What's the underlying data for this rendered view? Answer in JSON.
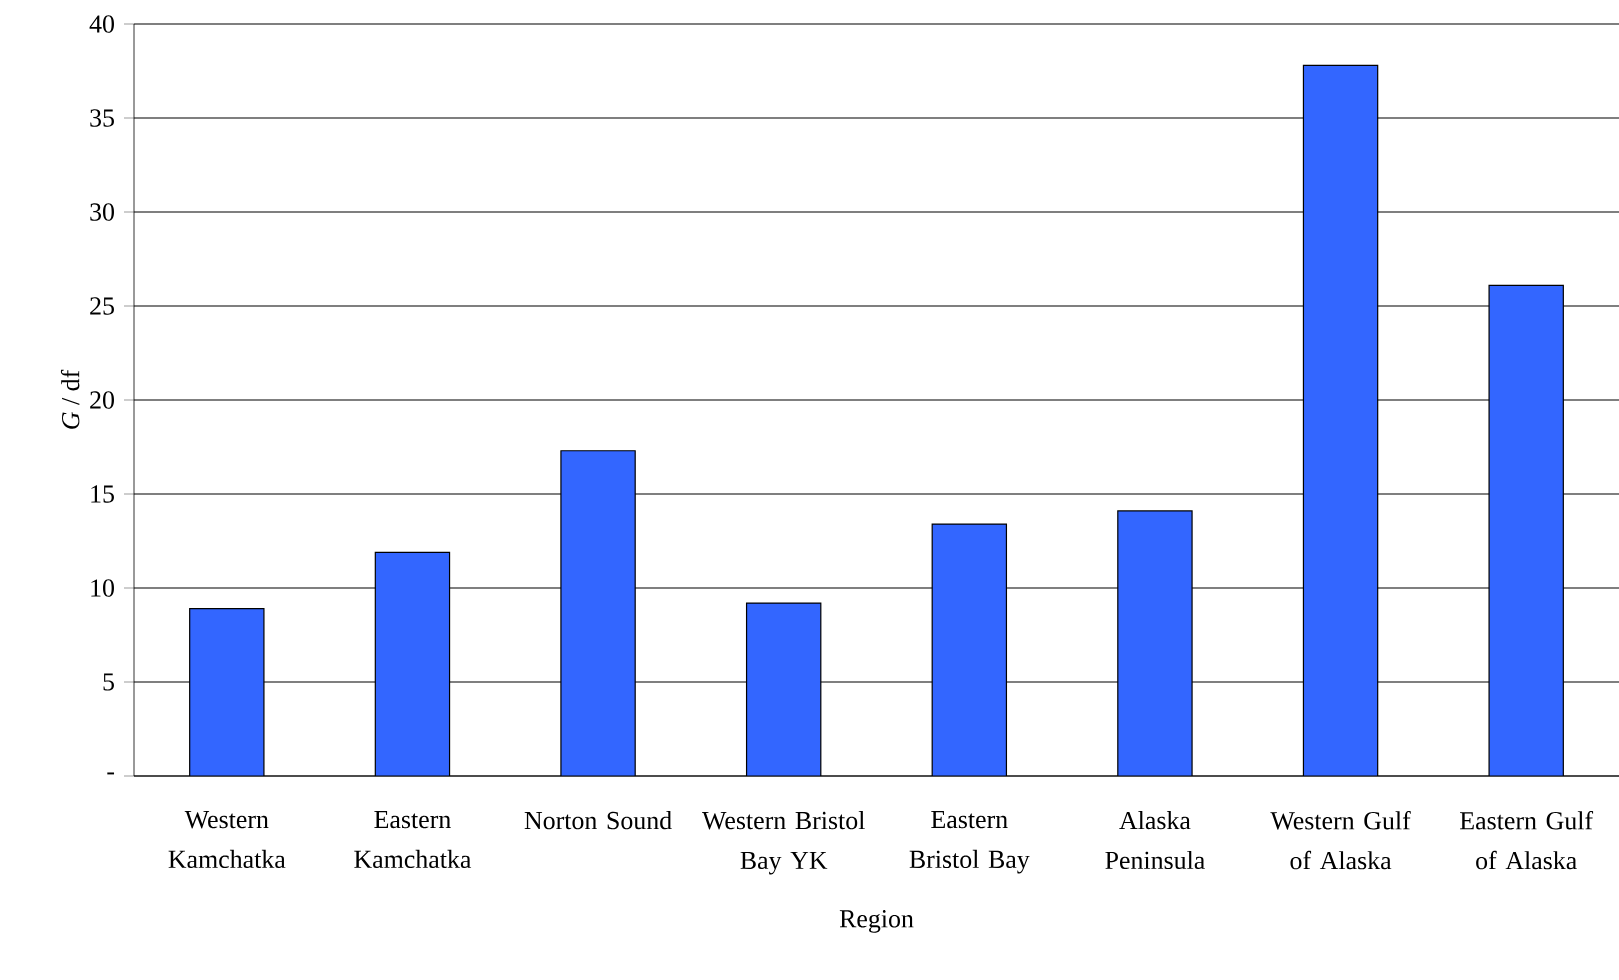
{
  "chart_data": {
    "type": "bar",
    "xlabel": "Region",
    "ylabel": "*G* / df",
    "categories": [
      "Western Kamchatka",
      "Eastern Kamchatka",
      "Norton Sound",
      "Western Bristol Bay YK",
      "Eastern Bristol Bay",
      "Alaska Peninsula",
      "Western Gulf of Alaska",
      "Eastern Gulf of Alaska"
    ],
    "values": [
      8.9,
      11.9,
      17.3,
      9.2,
      13.4,
      14.1,
      37.8,
      26.1
    ],
    "color": "#3366ff",
    "ylim": [
      0,
      40
    ],
    "yticks": [
      {
        "value": 0,
        "label": "-"
      },
      5,
      10,
      15,
      20,
      25,
      30,
      35,
      40
    ],
    "grid": "y"
  }
}
